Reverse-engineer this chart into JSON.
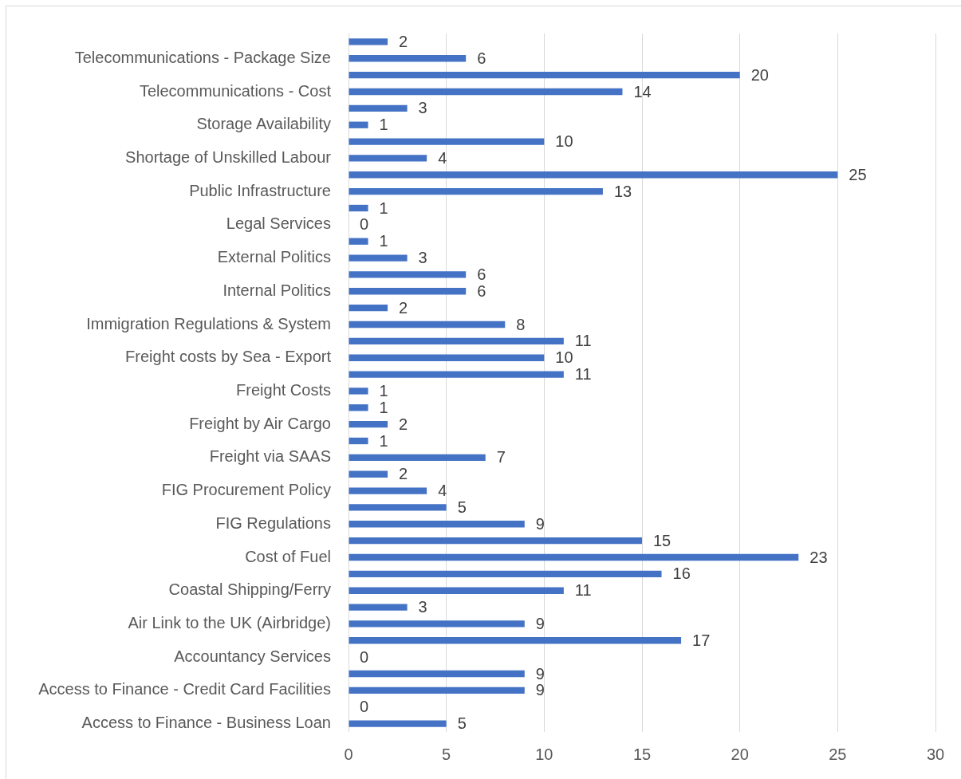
{
  "chart_data": {
    "type": "bar",
    "orientation": "horizontal",
    "categories": [
      null,
      "Telecommunications - Package Size",
      null,
      "Telecommunications - Cost",
      null,
      "Storage Availability",
      null,
      "Shortage of Unskilled Labour",
      null,
      "Public Infrastructure",
      null,
      "Legal Services",
      null,
      "External Politics",
      null,
      "Internal Politics",
      null,
      "Immigration Regulations & System",
      null,
      "Freight costs by Sea - Export",
      null,
      "Freight Costs",
      null,
      "Freight by Air Cargo",
      null,
      "Freight via SAAS",
      null,
      "FIG Procurement Policy",
      null,
      "FIG Regulations",
      null,
      "Cost of Fuel",
      null,
      "Coastal Shipping/Ferry",
      null,
      "Air Link to the UK (Airbridge)",
      null,
      "Accountancy Services",
      null,
      "Access to Finance - Credit Card Facilities",
      null,
      "Access to Finance - Business Loan"
    ],
    "values": [
      2,
      6,
      20,
      14,
      3,
      1,
      10,
      4,
      25,
      13,
      1,
      0,
      1,
      3,
      6,
      6,
      2,
      8,
      11,
      10,
      11,
      1,
      1,
      2,
      1,
      7,
      2,
      4,
      5,
      9,
      15,
      23,
      16,
      11,
      3,
      9,
      17,
      0,
      9,
      9,
      0,
      5
    ],
    "color": "#4472c4",
    "xlim": [
      0,
      30
    ],
    "xticks": [
      0,
      5,
      10,
      15,
      20,
      25,
      30
    ],
    "grid": "x",
    "legend": false,
    "data_labels": true
  }
}
